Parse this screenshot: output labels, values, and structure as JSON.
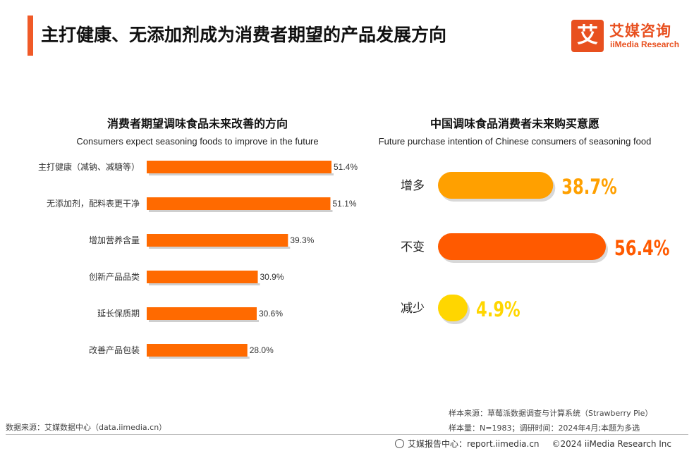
{
  "header": {
    "title": "主打健康、无添加剂成为消费者期望的产品发展方向",
    "logo_cn": "艾媒咨询",
    "logo_en": "iiMedia Research",
    "logo_glyph": "艾"
  },
  "colors": {
    "accent": "#f05a28",
    "bar": "#ff6a00",
    "increase": "#ffa000",
    "unchanged": "#ff5a00",
    "decrease": "#ffd600"
  },
  "chart_data": [
    {
      "type": "bar",
      "orientation": "horizontal",
      "title": "消费者期望调味食品未来改善的方向",
      "subtitle": "Consumers expect seasoning foods to improve in the future",
      "categories": [
        "主打健康（减钠、减糖等）",
        "无添加剂，配料表更干净",
        "增加营养含量",
        "创新产品品类",
        "延长保质期",
        "改善产品包装"
      ],
      "values": [
        51.4,
        51.1,
        39.3,
        30.9,
        30.6,
        28.0
      ],
      "labels": [
        "51.4%",
        "51.1%",
        "39.3%",
        "30.9%",
        "30.6%",
        "28.0%"
      ],
      "unit": "%",
      "xlim": [
        0,
        51.4
      ],
      "grid": false
    },
    {
      "type": "bar",
      "orientation": "horizontal",
      "title": "中国调味食品消费者未来购买意愿",
      "subtitle": "Future purchase intention of Chinese consumers of seasoning food",
      "categories": [
        "增多",
        "不变",
        "减少"
      ],
      "values": [
        38.7,
        56.4,
        4.9
      ],
      "labels": [
        "38.7%",
        "56.4%",
        "4.9%"
      ],
      "unit": "%",
      "xlim": [
        0,
        56.4
      ],
      "grid": false
    }
  ],
  "footer": {
    "source": "数据来源：艾媒数据中心（data.iimedia.cn）",
    "sample_source": "样本来源：草莓派数据调查与计算系统（Strawberry Pie）",
    "sample_info": "样本量：N=1983；调研时间：2024年4月;本题为多选",
    "report_center": "艾媒报告中心：report.iimedia.cn",
    "copyright": "©2024  iiMedia Research Inc"
  }
}
